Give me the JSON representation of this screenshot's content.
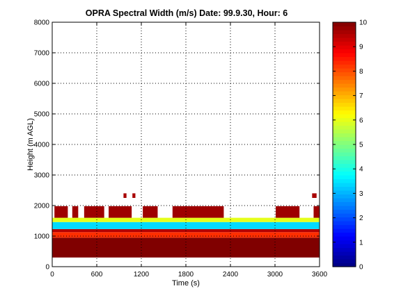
{
  "chart_data": {
    "type": "heatmap",
    "title": "OPRA Spectral Width (m/s)  Date: 99.9.30, Hour: 6",
    "xlabel": "Time (s)",
    "ylabel": "Height (m AGL)",
    "xlim": [
      0,
      3600
    ],
    "ylim": [
      0,
      8000
    ],
    "x_ticks": [
      0,
      600,
      1200,
      1800,
      2400,
      3000,
      3600
    ],
    "y_ticks": [
      0,
      1000,
      2000,
      3000,
      4000,
      5000,
      6000,
      7000,
      8000
    ],
    "grid": true,
    "colorbar": {
      "range": [
        0,
        10
      ],
      "ticks": [
        0,
        1,
        2,
        3,
        4,
        5,
        6,
        7,
        8,
        9,
        10
      ],
      "colormap": "jet"
    },
    "value_bands": [
      {
        "from_height": 300,
        "to_height": 950,
        "value": 10,
        "from_time": 0,
        "to_time": 3600
      },
      {
        "from_height": 950,
        "to_height": 1130,
        "value": 8.3,
        "from_time": 0,
        "to_time": 3600
      },
      {
        "from_height": 1130,
        "to_height": 1230,
        "value": 9.5,
        "from_time": 0,
        "to_time": 3600
      },
      {
        "from_height": 1230,
        "to_height": 1460,
        "value": 3.4,
        "from_time": 0,
        "to_time": 3600
      },
      {
        "from_height": 1460,
        "to_height": 1600,
        "value": 6.0,
        "from_time": 0,
        "to_time": 3600
      },
      {
        "from_height": 1600,
        "to_height": 1980,
        "value": 9.7,
        "from_time": 30,
        "to_time": 210
      },
      {
        "from_height": 1600,
        "to_height": 1980,
        "value": 9.7,
        "from_time": 270,
        "to_time": 350
      },
      {
        "from_height": 1600,
        "to_height": 1980,
        "value": 9.7,
        "from_time": 430,
        "to_time": 700
      },
      {
        "from_height": 1600,
        "to_height": 1980,
        "value": 9.7,
        "from_time": 760,
        "to_time": 1070
      },
      {
        "from_height": 1600,
        "to_height": 1980,
        "value": 9.7,
        "from_time": 1220,
        "to_time": 1420
      },
      {
        "from_height": 1600,
        "to_height": 1980,
        "value": 9.7,
        "from_time": 1620,
        "to_time": 2310
      },
      {
        "from_height": 1600,
        "to_height": 1980,
        "value": 9.7,
        "from_time": 3010,
        "to_time": 3330
      },
      {
        "from_height": 1600,
        "to_height": 1980,
        "value": 9.7,
        "from_time": 3520,
        "to_time": 3600
      },
      {
        "from_height": 2250,
        "to_height": 2400,
        "value": 9.6,
        "from_time": 960,
        "to_time": 1000
      },
      {
        "from_height": 2250,
        "to_height": 2400,
        "value": 9.6,
        "from_time": 1080,
        "to_time": 1120
      },
      {
        "from_height": 2250,
        "to_height": 2400,
        "value": 9.6,
        "from_time": 3500,
        "to_time": 3560
      }
    ]
  }
}
